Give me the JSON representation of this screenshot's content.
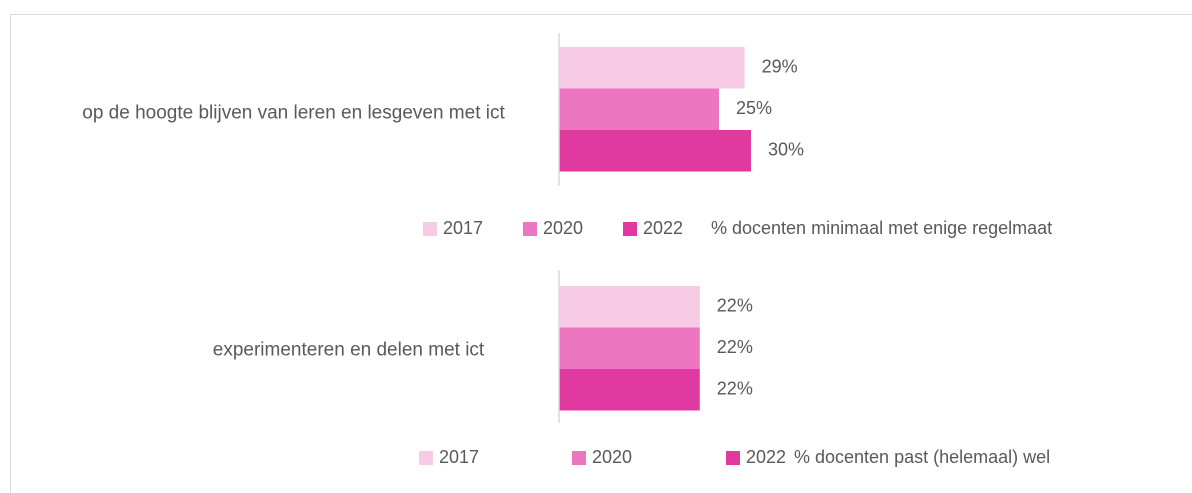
{
  "chart_data": [
    {
      "type": "bar",
      "orientation": "horizontal",
      "categories": [
        "op de hoogte blijven van leren en lesgeven met ict"
      ],
      "measure": "% docenten minimaal met enige regelmaat",
      "xlim": [
        0,
        100
      ],
      "series": [
        {
          "name": "2017",
          "color": "#f7cbe6",
          "values": [
            29
          ],
          "value_labels": [
            "29%"
          ]
        },
        {
          "name": "2020",
          "color": "#ec77c0",
          "values": [
            25
          ],
          "value_labels": [
            "25%"
          ]
        },
        {
          "name": "2022",
          "color": "#e03aa0",
          "values": [
            30
          ],
          "value_labels": [
            "30%"
          ]
        }
      ]
    },
    {
      "type": "bar",
      "orientation": "horizontal",
      "categories": [
        "experimenteren en delen met ict"
      ],
      "measure": "% docenten past (helemaal) wel",
      "xlim": [
        0,
        100
      ],
      "series": [
        {
          "name": "2017",
          "color": "#f7cbe6",
          "values": [
            22
          ],
          "value_labels": [
            "22%"
          ]
        },
        {
          "name": "2020",
          "color": "#ec77c0",
          "values": [
            22
          ],
          "value_labels": [
            "22%"
          ]
        },
        {
          "name": "2022",
          "color": "#e03aa0",
          "values": [
            22
          ],
          "value_labels": [
            "22%"
          ]
        }
      ]
    }
  ]
}
